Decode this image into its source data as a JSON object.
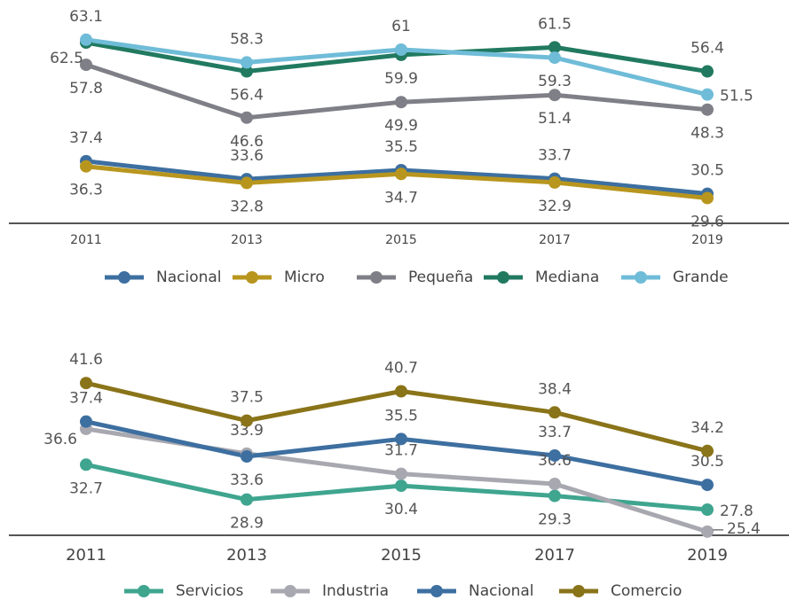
{
  "chart_data": [
    {
      "type": "line",
      "categories": [
        "2011",
        "2013",
        "2015",
        "2017",
        "2019"
      ],
      "ylim": [
        25,
        70
      ],
      "series": [
        {
          "name": "Nacional",
          "color": "#3d6fa0",
          "values": [
            37.4,
            33.6,
            35.5,
            33.7,
            30.5
          ]
        },
        {
          "name": "Micro",
          "color": "#b8961e",
          "values": [
            36.3,
            32.8,
            34.7,
            32.9,
            29.6
          ]
        },
        {
          "name": "Pequeña",
          "color": "#7f7f87",
          "values": [
            57.8,
            46.6,
            49.9,
            51.4,
            48.3
          ]
        },
        {
          "name": "Mediana",
          "color": "#217a60",
          "values": [
            62.5,
            56.4,
            59.9,
            61.5,
            56.4
          ]
        },
        {
          "name": "Grande",
          "color": "#6fbcd8",
          "values": [
            63.1,
            58.3,
            61.0,
            59.3,
            51.5
          ]
        }
      ]
    },
    {
      "type": "line",
      "categories": [
        "2011",
        "2013",
        "2015",
        "2017",
        "2019"
      ],
      "ylim": [
        25,
        45
      ],
      "series": [
        {
          "name": "Servicios",
          "color": "#3fa58f",
          "values": [
            32.7,
            28.9,
            30.4,
            29.3,
            27.8
          ]
        },
        {
          "name": "Industria",
          "color": "#a8a8b0",
          "values": [
            36.6,
            33.9,
            31.7,
            30.6,
            25.4
          ]
        },
        {
          "name": "Nacional",
          "color": "#3d6fa0",
          "values": [
            37.4,
            33.6,
            35.5,
            33.7,
            30.5
          ]
        },
        {
          "name": "Comercio",
          "color": "#8a7419",
          "values": [
            41.6,
            37.5,
            40.7,
            38.4,
            34.2
          ]
        }
      ]
    }
  ]
}
